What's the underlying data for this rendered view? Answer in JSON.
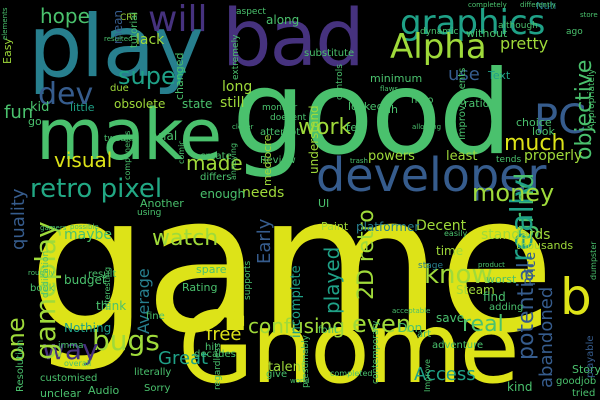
{
  "palette": {
    "yellow": "#dde318",
    "lime": "#9fda3a",
    "green": "#4ac16d",
    "teal": "#1fa187",
    "cyan": "#22a884",
    "blue": "#277f8e",
    "slate": "#365c8d",
    "indigo": "#46327e",
    "purple": "#440154"
  },
  "words": [
    {
      "text": "game"
    },
    {
      "text": "good"
    },
    {
      "text": "Gnome"
    },
    {
      "text": "play"
    },
    {
      "text": "bad"
    },
    {
      "text": "make"
    },
    {
      "text": "developer"
    },
    {
      "text": "graphics"
    },
    {
      "text": "Alpha"
    },
    {
      "text": "will"
    },
    {
      "text": "hope"
    },
    {
      "text": "work"
    },
    {
      "text": "dev"
    },
    {
      "text": "super"
    },
    {
      "text": "fun"
    },
    {
      "text": "PC"
    },
    {
      "text": "objective"
    },
    {
      "text": "grind"
    },
    {
      "text": "really"
    },
    {
      "text": "b"
    },
    {
      "text": "retro pixel"
    },
    {
      "text": "visual"
    },
    {
      "text": "made"
    },
    {
      "text": "much"
    },
    {
      "text": "money"
    },
    {
      "text": "watch"
    },
    {
      "text": "know"
    },
    {
      "text": "even"
    },
    {
      "text": "real"
    },
    {
      "text": "confusing"
    },
    {
      "text": "bugs"
    },
    {
      "text": "way"
    },
    {
      "text": "gameplay"
    },
    {
      "text": "one"
    },
    {
      "text": "quality"
    },
    {
      "text": "Early"
    },
    {
      "text": "2D retro"
    },
    {
      "text": "played"
    },
    {
      "text": "potential"
    },
    {
      "text": "abandoned"
    },
    {
      "text": "Access"
    },
    {
      "text": "free"
    },
    {
      "text": "Average"
    },
    {
      "text": "pretty"
    },
    {
      "text": "use"
    },
    {
      "text": "lack"
    },
    {
      "text": "Nuh"
    },
    {
      "text": "CRT"
    },
    {
      "text": "mean"
    },
    {
      "text": "Easy"
    },
    {
      "text": "talent"
    },
    {
      "text": "along"
    },
    {
      "text": "UI"
    },
    {
      "text": "needs"
    },
    {
      "text": "Decent"
    },
    {
      "text": "Paint"
    },
    {
      "text": "platformer"
    },
    {
      "text": "Steam"
    },
    {
      "text": "Price"
    },
    {
      "text": "Great"
    },
    {
      "text": "Nothing"
    },
    {
      "text": "think"
    },
    {
      "text": "budget"
    },
    {
      "text": "maybe"
    },
    {
      "text": "Rating"
    },
    {
      "text": "spare"
    },
    {
      "text": "incomplete"
    },
    {
      "text": "enough"
    },
    {
      "text": "Arial"
    },
    {
      "text": "Another"
    },
    {
      "text": "little"
    },
    {
      "text": "obsolete"
    },
    {
      "text": "state"
    },
    {
      "text": "still"
    },
    {
      "text": "long"
    },
    {
      "text": "time"
    },
    {
      "text": "Text"
    },
    {
      "text": "stage"
    },
    {
      "text": "find"
    },
    {
      "text": "save"
    },
    {
      "text": "Don"
    },
    {
      "text": "adding"
    },
    {
      "text": "kind"
    },
    {
      "text": "worst"
    },
    {
      "text": "Story"
    },
    {
      "text": "goodjob"
    },
    {
      "text": "tried"
    },
    {
      "text": "playable"
    },
    {
      "text": "standards"
    },
    {
      "text": "thousands"
    },
    {
      "text": "powers"
    },
    {
      "text": "least"
    },
    {
      "text": "properly"
    },
    {
      "text": "tends"
    },
    {
      "text": "choice"
    },
    {
      "text": "ratio"
    },
    {
      "text": "look"
    },
    {
      "text": "improvements"
    },
    {
      "text": "hero"
    },
    {
      "text": "tell"
    },
    {
      "text": "uh"
    },
    {
      "text": "without"
    },
    {
      "text": "dynamic"
    },
    {
      "text": "locked"
    },
    {
      "text": "minimum"
    },
    {
      "text": "controls"
    },
    {
      "text": "substitute"
    },
    {
      "text": "understand"
    },
    {
      "text": "Review"
    },
    {
      "text": "attempt"
    },
    {
      "text": "create"
    },
    {
      "text": "differs"
    },
    {
      "text": "mediocre"
    },
    {
      "text": "tutorial"
    },
    {
      "text": "changed"
    },
    {
      "text": "due"
    },
    {
      "text": "kid"
    },
    {
      "text": "go"
    },
    {
      "text": "Audio"
    },
    {
      "text": "unclear"
    },
    {
      "text": "Resolution"
    },
    {
      "text": "customised"
    },
    {
      "text": "book"
    },
    {
      "text": "dedication"
    },
    {
      "text": "result"
    },
    {
      "text": "imma"
    },
    {
      "text": "literally"
    },
    {
      "text": "Sorry"
    },
    {
      "text": "give"
    },
    {
      "text": "decades"
    },
    {
      "text": "fine"
    },
    {
      "text": "hit"
    },
    {
      "text": "art"
    },
    {
      "text": "adventure"
    },
    {
      "text": "contemporary"
    },
    {
      "text": "font"
    },
    {
      "text": "presumably"
    },
    {
      "text": "regardless"
    },
    {
      "text": "supports"
    },
    {
      "text": "tweaks"
    },
    {
      "text": "using"
    },
    {
      "text": "extremely"
    },
    {
      "text": "monitor"
    },
    {
      "text": "doesent"
    },
    {
      "text": "although"
    },
    {
      "text": "aspect"
    },
    {
      "text": "completed"
    },
    {
      "text": "interesting"
    },
    {
      "text": "overall"
    },
    {
      "text": "completely"
    },
    {
      "text": "easily"
    },
    {
      "text": "dumpster"
    },
    {
      "text": "ago"
    },
    {
      "text": "Appropriately"
    },
    {
      "text": "product"
    },
    {
      "text": "store"
    },
    {
      "text": "allowing"
    },
    {
      "text": "clever"
    },
    {
      "text": "trash"
    },
    {
      "text": "annoying"
    },
    {
      "text": "flaws"
    },
    {
      "text": "components"
    },
    {
      "text": "resulted"
    },
    {
      "text": "elements"
    },
    {
      "text": "gamers"
    },
    {
      "text": "possible"
    },
    {
      "text": "roughly"
    },
    {
      "text": "comic"
    },
    {
      "text": "acceptable"
    },
    {
      "text": "world"
    },
    {
      "text": "Improve"
    },
    {
      "text": "differently"
    }
  ]
}
